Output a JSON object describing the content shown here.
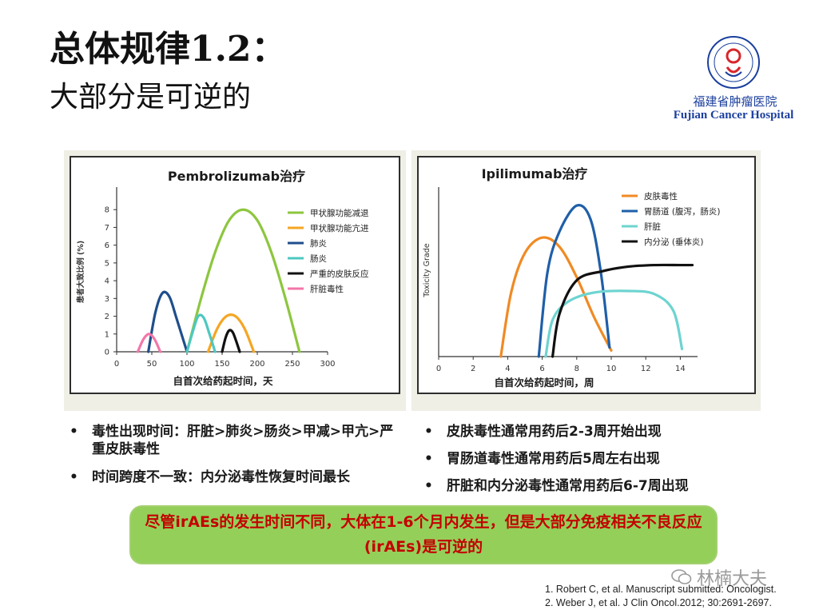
{
  "slide": {
    "title": "总体规律1.2：",
    "subtitle": "大部分是可逆的"
  },
  "logo": {
    "hospital_cn": "福建省肿瘤医院",
    "hospital_en": "Fujian Cancer Hospital",
    "brand_color": "#1b3f9e"
  },
  "chart_data": [
    {
      "type": "line",
      "title": "Pembrolizumab治疗",
      "xlabel": "自首次给药起时间，天",
      "ylabel": "患者大致比例 (%)",
      "xlim": [
        0,
        300
      ],
      "ylim": [
        0,
        9
      ],
      "xticks": [
        "0",
        "50",
        "100",
        "150",
        "200",
        "250",
        "300"
      ],
      "yticks": [
        "0",
        "1",
        "2",
        "3",
        "4",
        "5",
        "6",
        "7",
        "8"
      ],
      "legend_position": "right",
      "series": [
        {
          "name": "甲状腺功能减退",
          "color": "#8dc63f",
          "x": [
            100,
            120,
            140,
            160,
            180,
            200,
            220,
            240,
            260
          ],
          "y": [
            0,
            3.0,
            5.6,
            7.4,
            8.0,
            7.4,
            5.6,
            3.0,
            0
          ]
        },
        {
          "name": "甲状腺功能亢进",
          "color": "#f5a623",
          "x": [
            130,
            143,
            156,
            169,
            182,
            195
          ],
          "y": [
            0,
            1.3,
            2.0,
            2.0,
            1.3,
            0
          ]
        },
        {
          "name": "肺炎",
          "color": "#1f4e8c",
          "x": [
            45,
            55,
            65,
            75,
            85,
            100
          ],
          "y": [
            0,
            2.2,
            3.3,
            3.1,
            1.9,
            0
          ]
        },
        {
          "name": "肠炎",
          "color": "#4dc8c0",
          "x": [
            100,
            108,
            116,
            124,
            132,
            140
          ],
          "y": [
            0,
            1.1,
            2.0,
            1.9,
            1.0,
            0
          ]
        },
        {
          "name": "严重的皮肤反应",
          "color": "#111111",
          "x": [
            150,
            155,
            160,
            165,
            170,
            175
          ],
          "y": [
            0,
            0.8,
            1.2,
            1.1,
            0.6,
            0
          ]
        },
        {
          "name": "肝脏毒性",
          "color": "#f277a8",
          "x": [
            30,
            38,
            46,
            54,
            62
          ],
          "y": [
            0,
            0.7,
            1.0,
            0.7,
            0
          ]
        }
      ]
    },
    {
      "type": "line",
      "title": "Ipilimumab治疗",
      "xlabel": "自首次给药起时间，周",
      "ylabel": "Toxicity Grade",
      "xlim": [
        0,
        15
      ],
      "xticks": [
        "0",
        "2",
        "4",
        "6",
        "8",
        "10",
        "12",
        "14"
      ],
      "legend_position": "top-right",
      "series": [
        {
          "name": "皮肤毒性",
          "color": "#f08a24",
          "x": [
            3.6,
            4.2,
            5.0,
            6.0,
            7.0,
            8.0,
            9.0,
            10.0
          ],
          "y": [
            0,
            0.42,
            0.68,
            0.78,
            0.72,
            0.52,
            0.26,
            0.04
          ]
        },
        {
          "name": "胃肠道 (腹泻，肠炎)",
          "color": "#1f5fa8",
          "x": [
            5.8,
            6.3,
            7.0,
            8.0,
            8.8,
            9.4,
            9.9
          ],
          "y": [
            0,
            0.55,
            0.82,
            0.99,
            0.9,
            0.55,
            0.06
          ]
        },
        {
          "name": "肝脏",
          "color": "#6dd4d0",
          "x": [
            6.2,
            6.6,
            7.5,
            9.0,
            11.0,
            12.5,
            13.6,
            14.1
          ],
          "y": [
            0,
            0.24,
            0.36,
            0.42,
            0.43,
            0.41,
            0.3,
            0.05
          ]
        },
        {
          "name": "内分泌 (垂体炎)",
          "color": "#111111",
          "x": [
            6.6,
            7.0,
            8.0,
            9.5,
            11.0,
            12.5,
            14.0,
            14.7
          ],
          "y": [
            0,
            0.28,
            0.5,
            0.56,
            0.59,
            0.6,
            0.6,
            0.6
          ]
        }
      ]
    }
  ],
  "bullets_left": [
    "毒性出现时间：肝脏>肺炎>肠炎>甲减>甲亢>严重皮肤毒性",
    "时间跨度不一致：内分泌毒性恢复时间最长"
  ],
  "bullets_right": [
    "皮肤毒性通常用药后2-3周开始出现",
    "胃肠道毒性通常用药后5周左右出现",
    "肝脏和内分泌毒性通常用药后6-7周出现"
  ],
  "callout": {
    "text": "尽管irAEs的发生时间不同，大体在1-6个月内发生，但是大部分免疫相关不良反应(irAEs)是可逆的",
    "bg_color": "#94cf5a",
    "text_color": "#c40000"
  },
  "watermark": "林楠大夫",
  "references": [
    "1. Robert C, et al. Manuscript submitted: Oncologist.",
    "2. Weber J, et al. J Clin Oncol.2012; 30:2691-2697."
  ]
}
